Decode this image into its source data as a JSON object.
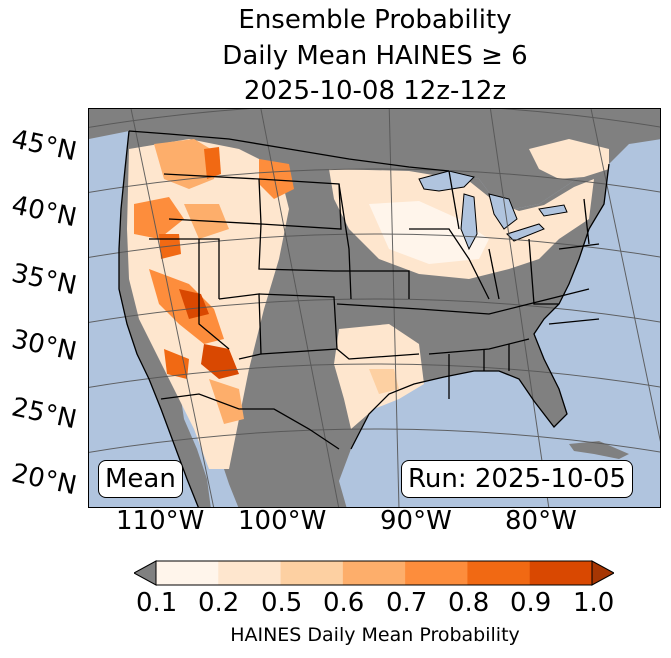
{
  "title": {
    "line1": "Ensemble Probability",
    "line2": "Daily Mean HAINES ≥ 6",
    "line3": "2025-10-08 12z-12z"
  },
  "map": {
    "lat_labels": [
      "45°N",
      "40°N",
      "35°N",
      "30°N",
      "25°N",
      "20°N"
    ],
    "lon_labels": [
      "110°W",
      "100°W",
      "90°W",
      "80°W"
    ],
    "stat_label": "Mean",
    "run_label": "Run: 2025-10-05",
    "colors": {
      "ocean": "#b0c4de",
      "land_missing": "#808080",
      "graticule": "#555555",
      "border": "#000000"
    }
  },
  "colorbar": {
    "ticks": [
      "0.1",
      "0.2",
      "0.5",
      "0.6",
      "0.7",
      "0.8",
      "0.9",
      "1.0"
    ],
    "colors": [
      "#fff5eb",
      "#fee6ce",
      "#fdd0a2",
      "#fdae6b",
      "#fd8d3c",
      "#f16913",
      "#d94801"
    ],
    "under_color": "#808080",
    "over_color": "#a63603",
    "label": "HAINES Daily Mean Probability"
  }
}
